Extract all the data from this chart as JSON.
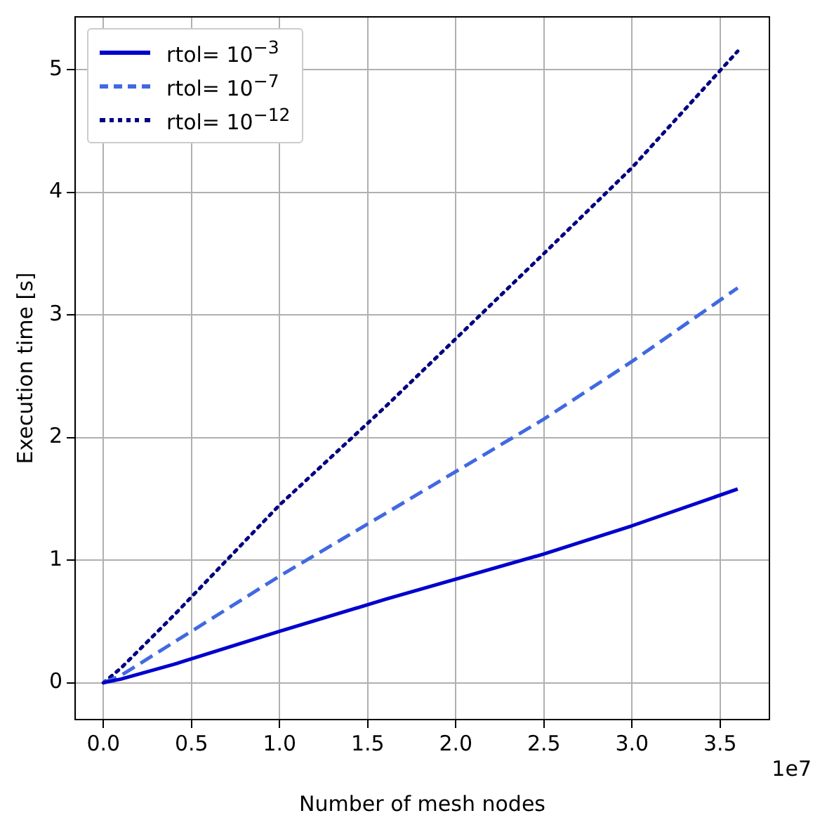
{
  "chart_data": {
    "type": "line",
    "xlabel": "Number of mesh nodes",
    "ylabel": "Execution time [s]",
    "x": [
      0,
      0.1,
      0.4,
      1.0,
      1.6,
      2.5,
      3.0,
      3.6
    ],
    "series": [
      {
        "name": "rtol= 10$^{−3}$",
        "color": "#0000cd",
        "line_style": "solid",
        "values": [
          0,
          0.03,
          0.15,
          0.42,
          0.68,
          1.05,
          1.28,
          1.58
        ]
      },
      {
        "name": "rtol= 10$^{−7}$",
        "color": "#4169e1",
        "line_style": "dashed",
        "values": [
          0,
          0.06,
          0.33,
          0.87,
          1.38,
          2.15,
          2.62,
          3.22
        ]
      },
      {
        "name": "rtol= 10$^{−12}$",
        "color": "#000080",
        "line_style": "dotted",
        "values": [
          0,
          0.12,
          0.55,
          1.45,
          2.25,
          3.5,
          4.2,
          5.15
        ]
      }
    ],
    "xlim": [
      -0.16,
      3.78
    ],
    "xticks": [
      {
        "value": 0,
        "label": "0.0"
      },
      0.5,
      {
        "value": 1,
        "label": "1.0"
      },
      1.5,
      {
        "value": 2,
        "label": "2.0"
      },
      2.5,
      {
        "value": 3,
        "label": "3.0"
      },
      3.5
    ],
    "ylim": [
      -0.3,
      5.43
    ],
    "yticks": [
      0,
      1,
      2,
      3,
      4,
      5
    ],
    "annotations": [
      "1e7"
    ],
    "grid": true,
    "legend": "top left",
    "marker": "none"
  }
}
